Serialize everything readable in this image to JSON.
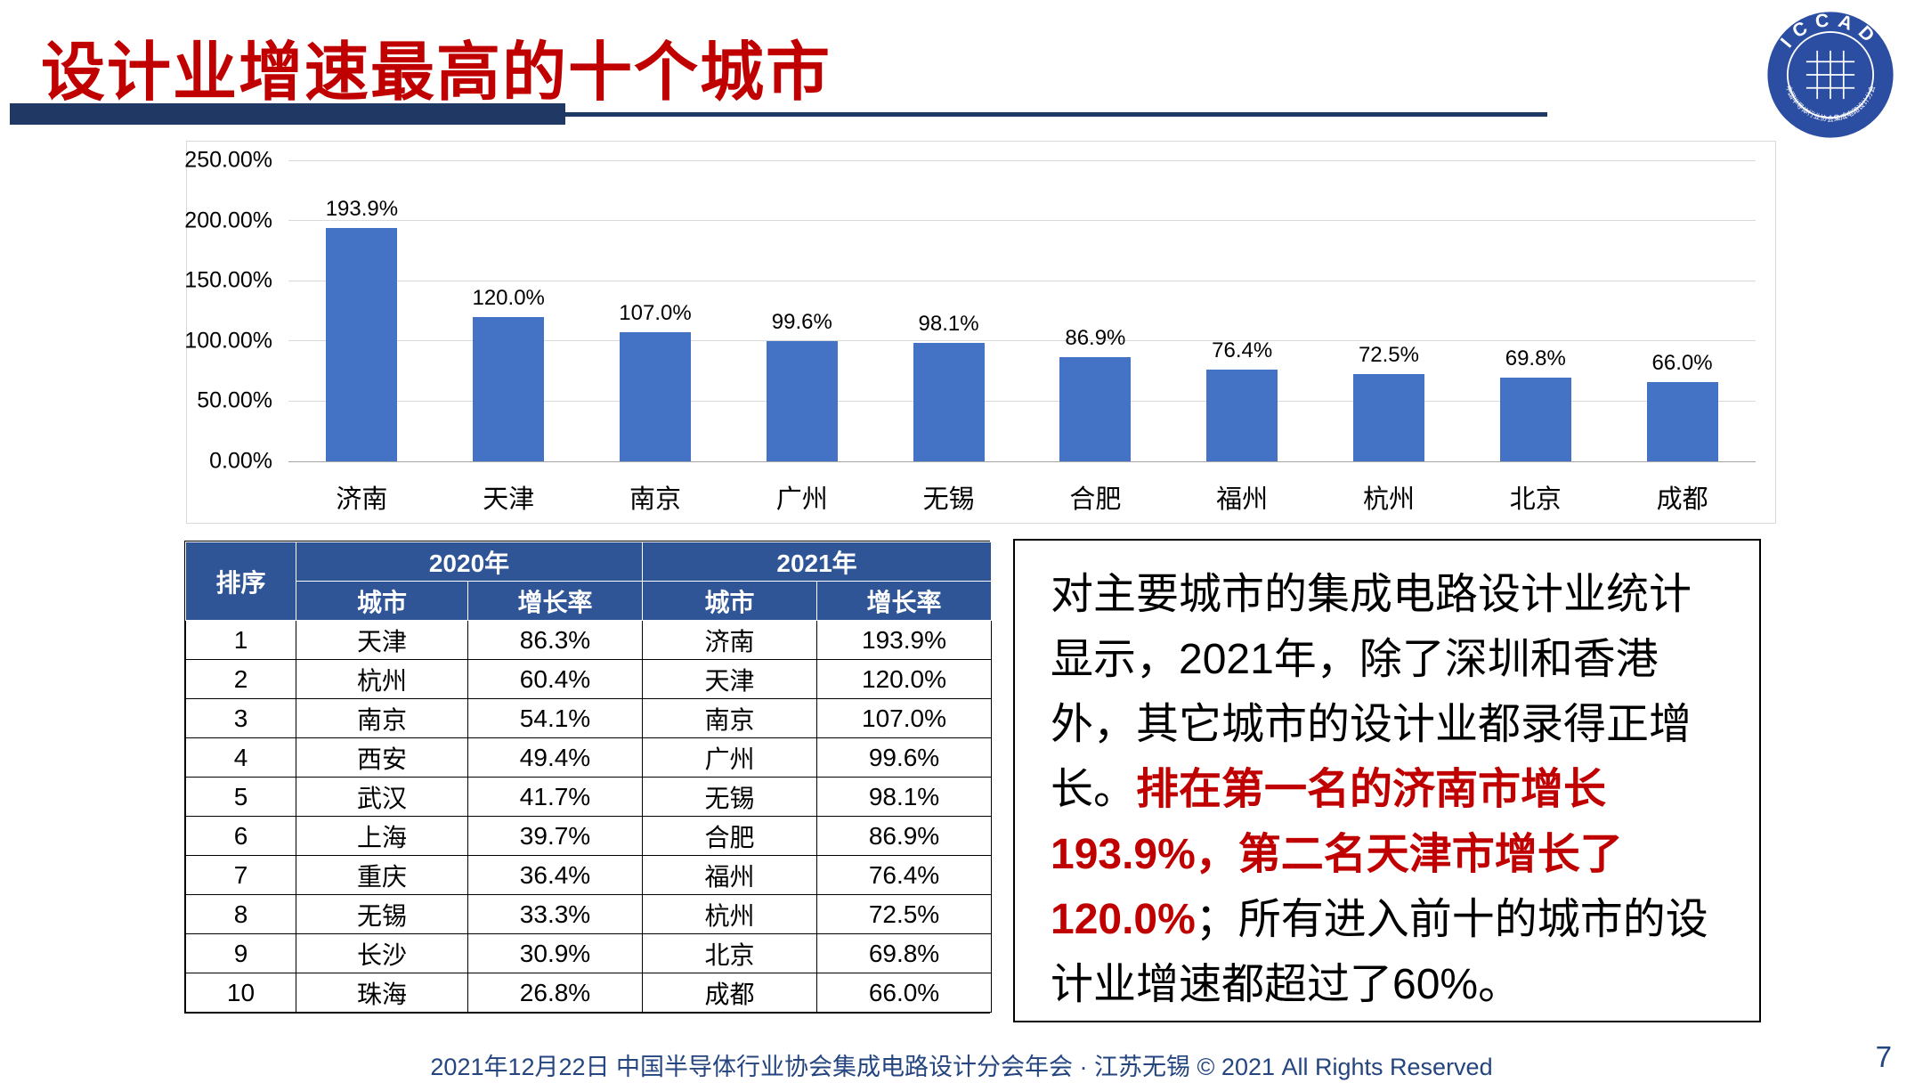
{
  "slide": {
    "title": "设计业增速最高的十个城市",
    "footer": "2021年12月22日 中国半导体行业协会集成电路设计分会年会 · 江苏无锡 © 2021 All Rights Reserved",
    "page_number": "7"
  },
  "logo": {
    "top_text": "ICCAD",
    "bottom_text": "中国半导体行业协会集成电路设计分会"
  },
  "chart_data": {
    "type": "bar",
    "categories": [
      "济南",
      "天津",
      "南京",
      "广州",
      "无锡",
      "合肥",
      "福州",
      "杭州",
      "北京",
      "成都"
    ],
    "values": [
      193.9,
      120.0,
      107.0,
      99.6,
      98.1,
      86.9,
      76.4,
      72.5,
      69.8,
      66.0
    ],
    "value_labels": [
      "193.9%",
      "120.0%",
      "107.0%",
      "99.6%",
      "98.1%",
      "86.9%",
      "76.4%",
      "72.5%",
      "69.8%",
      "66.0%"
    ],
    "title": "",
    "xlabel": "",
    "ylabel": "",
    "ylim": [
      0,
      250
    ],
    "ytick_labels": [
      "250.00%",
      "200.00%",
      "150.00%",
      "100.00%",
      "50.00%",
      "0.00%"
    ],
    "grid": true,
    "legend": false,
    "bar_color": "#4472C4"
  },
  "table": {
    "headers": {
      "rank": "排序",
      "year2020": "2020年",
      "year2021": "2021年",
      "city": "城市",
      "growth": "增长率"
    },
    "rows": [
      [
        "1",
        "天津",
        "86.3%",
        "济南",
        "193.9%"
      ],
      [
        "2",
        "杭州",
        "60.4%",
        "天津",
        "120.0%"
      ],
      [
        "3",
        "南京",
        "54.1%",
        "南京",
        "107.0%"
      ],
      [
        "4",
        "西安",
        "49.4%",
        "广州",
        "99.6%"
      ],
      [
        "5",
        "武汉",
        "41.7%",
        "无锡",
        "98.1%"
      ],
      [
        "6",
        "上海",
        "39.7%",
        "合肥",
        "86.9%"
      ],
      [
        "7",
        "重庆",
        "36.4%",
        "福州",
        "76.4%"
      ],
      [
        "8",
        "无锡",
        "33.3%",
        "杭州",
        "72.5%"
      ],
      [
        "9",
        "长沙",
        "30.9%",
        "北京",
        "69.8%"
      ],
      [
        "10",
        "珠海",
        "26.8%",
        "成都",
        "66.0%"
      ]
    ]
  },
  "note": {
    "part1": "对主要城市的集成电路设计业统计显示，2021年，除了深圳和香港外，其它城市的设计业都录得正增长。",
    "highlight": "排在第一名的济南市增长193.9%，第二名天津市增长了120.0%",
    "part2": "；所有进入前十的城市的设计业增速都超过了60%。"
  },
  "colors": {
    "title_red": "#C00000",
    "highlight_red": "#C00000",
    "bar_blue": "#4472C4",
    "table_header_blue": "#2F5597",
    "divider_navy": "#1F3864",
    "footer_blue": "#24457F",
    "logo_blue": "#2B4EA2"
  }
}
